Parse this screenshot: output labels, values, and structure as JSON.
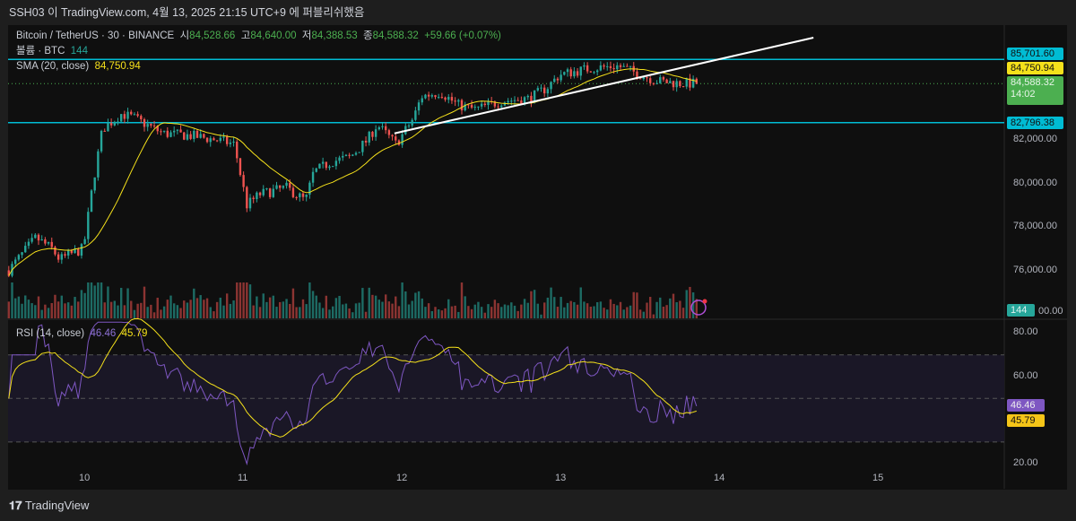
{
  "header": {
    "published": "SSH03 이 TradingView.com, 4월 13, 2025 21:15 UTC+9 에 퍼블리쉬했음"
  },
  "legend": {
    "symbol": "Bitcoin / TetherUS · 30 · BINANCE",
    "o_label": "시",
    "open": "84,528.66",
    "h_label": "고",
    "high": "84,640.00",
    "l_label": "저",
    "low": "84,388.53",
    "c_label": "종",
    "close": "84,588.32",
    "change": "+59.66 (+0.07%)",
    "volume_label": "볼륨 · BTC",
    "volume": "144",
    "sma_label": "SMA (20, close)",
    "sma": "84,750.94",
    "rsi_label": "RSI (14, close)",
    "rsi": "46.46",
    "rsi_ma": "45.79"
  },
  "price_tags": {
    "resistance": "85,701.60",
    "sma": "84,750.94",
    "last": "84,588.32",
    "countdown": "14:02",
    "support": "82,796.38",
    "volume": "144",
    "rsi": "46.46",
    "rsi_ma": "45.79"
  },
  "colors": {
    "up": "#26a69a",
    "down": "#ef5350",
    "sma": "#f5e11b",
    "rsi": "#7e57c2",
    "level": "#00bcd4",
    "trend": "#ffffff"
  },
  "footer": {
    "brand": "TradingView"
  },
  "chart_data": {
    "type": "candlestick",
    "price_axis": {
      "ticks": [
        "82,000.00",
        "80,000.00",
        "78,000.00",
        "76,000.00"
      ],
      "tick_values": [
        82000,
        80000,
        78000,
        76000
      ],
      "cut_label": "00.00"
    },
    "rsi_axis": {
      "ticks": [
        "80.00",
        "60.00",
        "20.00"
      ],
      "tick_values": [
        80,
        60,
        20
      ],
      "bands": [
        30,
        50,
        70
      ]
    },
    "time_axis": {
      "ticks": [
        "10",
        "11",
        "12",
        "13",
        "14",
        "15"
      ],
      "tick_values": [
        10,
        11,
        12,
        13,
        14,
        15
      ]
    },
    "levels": [
      85701.6,
      82796.38
    ],
    "trendline": [
      [
        11.96,
        82300
      ],
      [
        14.6,
        86700
      ]
    ],
    "close_keypoints": [
      [
        9.53,
        76000
      ],
      [
        9.7,
        77500
      ],
      [
        9.8,
        77000
      ],
      [
        9.85,
        76500
      ],
      [
        10.0,
        77000
      ],
      [
        10.06,
        80000
      ],
      [
        10.12,
        82500
      ],
      [
        10.24,
        83200
      ],
      [
        10.32,
        83000
      ],
      [
        10.5,
        82300
      ],
      [
        10.67,
        82200
      ],
      [
        10.84,
        82000
      ],
      [
        10.95,
        81800
      ],
      [
        11.03,
        79000
      ],
      [
        11.11,
        79500
      ],
      [
        11.28,
        79800
      ],
      [
        11.4,
        79200
      ],
      [
        11.45,
        80500
      ],
      [
        11.56,
        81000
      ],
      [
        11.68,
        81200
      ],
      [
        11.79,
        82000
      ],
      [
        11.85,
        82700
      ],
      [
        11.97,
        81800
      ],
      [
        12.08,
        83000
      ],
      [
        12.13,
        84000
      ],
      [
        12.25,
        84200
      ],
      [
        12.36,
        83600
      ],
      [
        12.47,
        83400
      ],
      [
        12.64,
        83800
      ],
      [
        12.81,
        83900
      ],
      [
        12.92,
        84400
      ],
      [
        13.0,
        85000
      ],
      [
        13.2,
        85300
      ],
      [
        13.37,
        85400
      ],
      [
        13.51,
        85000
      ],
      [
        13.62,
        84700
      ],
      [
        13.76,
        84600
      ],
      [
        13.87,
        84588.32
      ]
    ],
    "last_volume": 144,
    "rsi_last": 46.46,
    "rsi_ma_last": 45.79,
    "sma_last": 84750.94
  }
}
